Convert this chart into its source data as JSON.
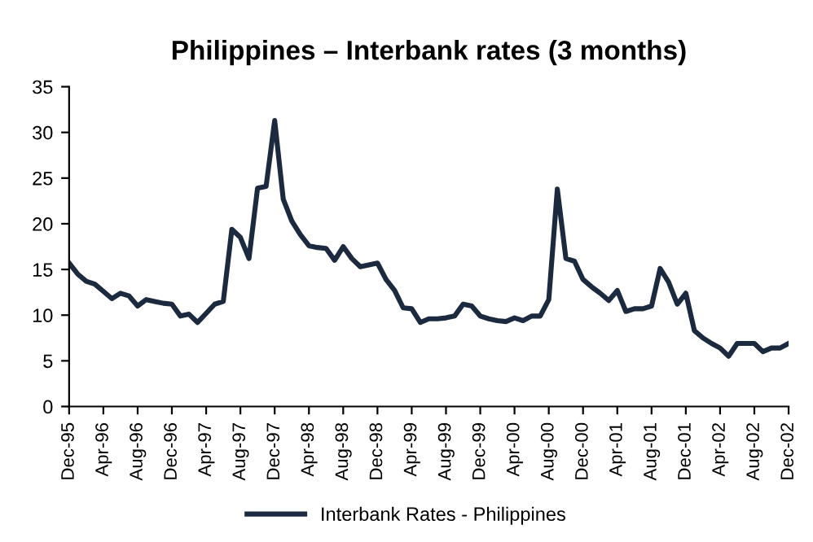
{
  "chart_data": {
    "type": "line",
    "title": "Philippines – Interbank rates (3 months)",
    "categories": [
      "Dec-95",
      null,
      null,
      null,
      "Apr-96",
      null,
      null,
      null,
      "Aug-96",
      null,
      null,
      null,
      "Dec-96",
      null,
      null,
      null,
      "Apr-97",
      null,
      null,
      null,
      "Aug-97",
      null,
      null,
      null,
      "Dec-97",
      null,
      null,
      null,
      "Apr-98",
      null,
      null,
      null,
      "Aug-98",
      null,
      null,
      null,
      "Dec-98",
      null,
      null,
      null,
      "Apr-99",
      null,
      null,
      null,
      "Aug-99",
      null,
      null,
      null,
      "Dec-99",
      null,
      null,
      null,
      "Apr-00",
      null,
      null,
      null,
      "Aug-00",
      null,
      null,
      null,
      "Dec-00",
      null,
      null,
      null,
      "Apr-01",
      null,
      null,
      null,
      "Aug-01",
      null,
      null,
      null,
      "Dec-01",
      null,
      null,
      null,
      "Apr-02",
      null,
      null,
      null,
      "Aug-02",
      null,
      null,
      null,
      "Dec-02"
    ],
    "series": [
      {
        "name": "Interbank Rates - Philippines",
        "color": "#1c2a3f",
        "values": [
          15.7,
          14.5,
          13.7,
          13.4,
          12.6,
          11.8,
          12.4,
          12.1,
          11.0,
          11.7,
          11.5,
          11.3,
          11.2,
          9.9,
          10.1,
          9.2,
          10.2,
          11.2,
          11.5,
          19.4,
          18.5,
          16.2,
          23.9,
          24.1,
          31.3,
          22.7,
          20.3,
          18.8,
          17.6,
          17.4,
          17.3,
          16.0,
          17.5,
          16.2,
          15.3,
          15.5,
          15.7,
          13.9,
          12.7,
          10.8,
          10.7,
          9.2,
          9.6,
          9.6,
          9.7,
          9.9,
          11.2,
          11.0,
          9.9,
          9.6,
          9.4,
          9.3,
          9.7,
          9.4,
          9.9,
          9.9,
          11.7,
          23.8,
          16.2,
          15.9,
          13.9,
          13.1,
          12.4,
          11.6,
          12.7,
          10.4,
          10.7,
          10.7,
          11.0,
          15.1,
          13.6,
          11.2,
          12.4,
          8.3,
          7.5,
          6.9,
          6.4,
          5.5,
          6.9,
          6.9,
          6.9,
          6.0,
          6.4,
          6.4,
          6.9
        ]
      }
    ],
    "ylim": [
      0,
      35
    ],
    "yticks": [
      0,
      5,
      10,
      15,
      20,
      25,
      30,
      35
    ],
    "grid": false,
    "legend": "bottom",
    "marker": "none",
    "line_style": "solid"
  }
}
